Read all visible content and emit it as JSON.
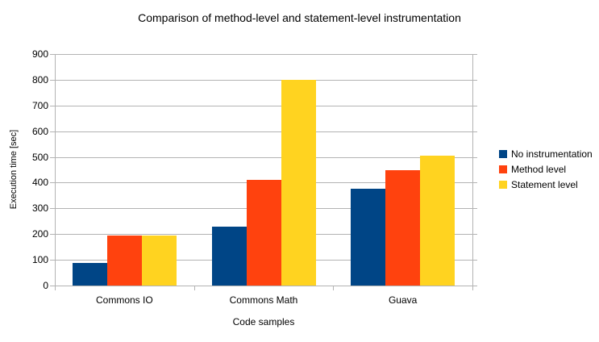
{
  "chart_data": {
    "type": "bar",
    "title": "Comparison of method-level and statement-level instrumentation",
    "xlabel": "Code samples",
    "ylabel": "Execution time [sec]",
    "categories": [
      "Commons IO",
      "Commons Math",
      "Guava"
    ],
    "series": [
      {
        "name": "No instrumentation",
        "color": "#004586",
        "values": [
          88,
          230,
          375
        ]
      },
      {
        "name": "Method level",
        "color": "#FF420E",
        "values": [
          195,
          410,
          450
        ]
      },
      {
        "name": "Statement level",
        "color": "#FFD320",
        "values": [
          195,
          800,
          505
        ]
      }
    ],
    "ylim": [
      0,
      900
    ],
    "ytick_step": 100,
    "grid": true,
    "legend_position": "right",
    "colors": {
      "grid": "#b3b3b3",
      "text": "#000000",
      "background": "#ffffff"
    }
  }
}
